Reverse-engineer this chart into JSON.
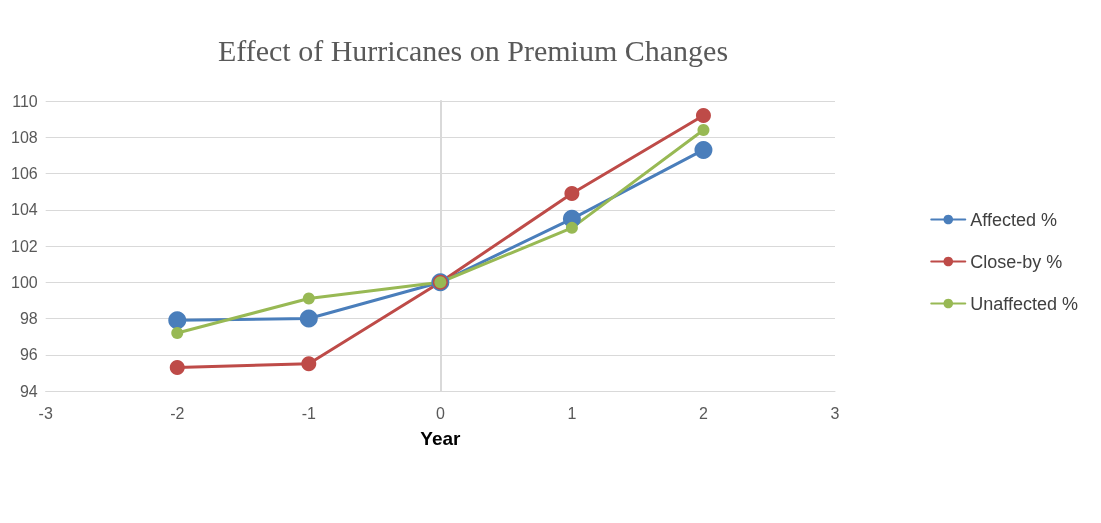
{
  "chart_data": {
    "type": "line",
    "title": "Effect of Hurricanes on Premium Changes",
    "xlabel": "Year",
    "x": [
      -2,
      -1,
      0,
      1,
      2
    ],
    "series": [
      {
        "name": "Affected %",
        "color": "#4a7ebb",
        "values": [
          97.9,
          98.0,
          100,
          103.5,
          107.3
        ]
      },
      {
        "name": "Close-by %",
        "color": "#be4b48",
        "values": [
          95.3,
          95.5,
          100,
          104.9,
          109.2
        ]
      },
      {
        "name": "Unaffected %",
        "color": "#98b954",
        "values": [
          97.2,
          99.1,
          100,
          103.0,
          108.4
        ]
      }
    ],
    "xlim": [
      -3,
      3
    ],
    "xticks": [
      -3,
      -2,
      -1,
      0,
      1,
      2,
      3
    ],
    "ylim": [
      94,
      110
    ],
    "yticks": [
      94,
      96,
      98,
      100,
      102,
      104,
      106,
      108,
      110
    ],
    "grid": "y",
    "legend": "right",
    "marker": "circle",
    "line_style": "solid"
  }
}
